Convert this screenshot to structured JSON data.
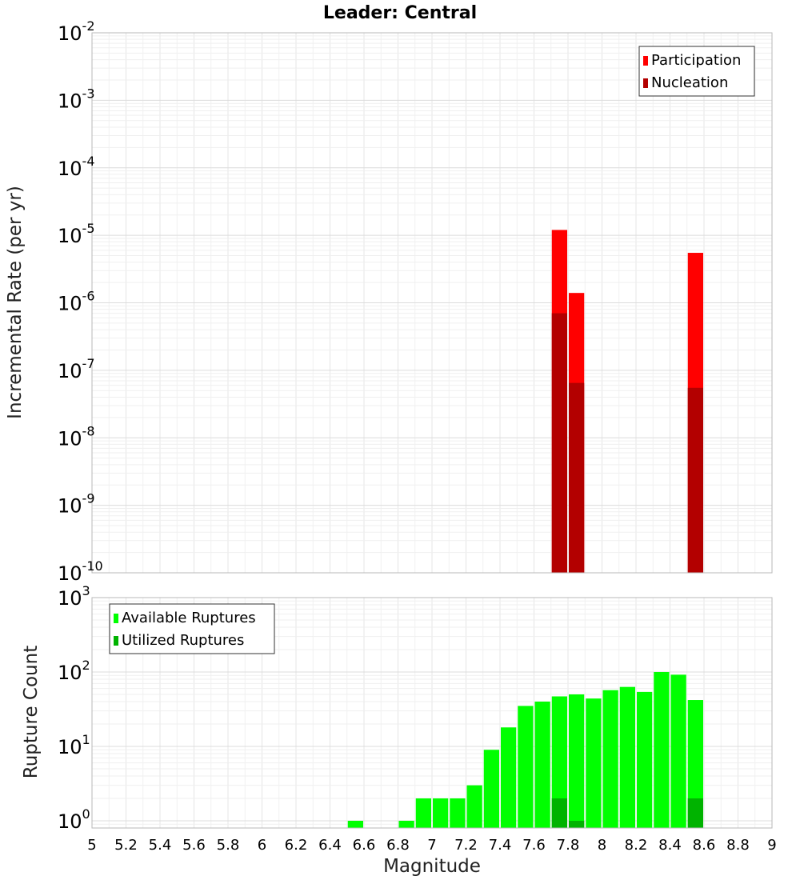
{
  "title": "Leader: Central",
  "xlabel": "Magnitude",
  "chart_data": [
    {
      "type": "bar",
      "ylabel": "Incremental Rate (per yr)",
      "yscale": "log",
      "ylim": [
        1e-10,
        0.01
      ],
      "xlim": [
        5,
        9
      ],
      "grid": true,
      "legend_placement": "top-right",
      "series": [
        {
          "name": "Participation",
          "color": "#ff0000",
          "x": [
            7.75,
            7.85,
            8.55
          ],
          "values": [
            1.2e-05,
            1.4e-06,
            5.5e-06
          ]
        },
        {
          "name": "Nucleation",
          "color": "#b30000",
          "x": [
            7.75,
            7.85,
            8.55
          ],
          "values": [
            7e-07,
            6.5e-08,
            5.5e-08
          ]
        }
      ]
    },
    {
      "type": "bar",
      "ylabel": "Rupture Count",
      "yscale": "log",
      "ylim": [
        0.8,
        1000
      ],
      "xlim": [
        5,
        9
      ],
      "grid": true,
      "legend_placement": "top-left",
      "series": [
        {
          "name": "Available Ruptures",
          "color": "#00ff00",
          "x": [
            6.55,
            6.85,
            6.95,
            7.05,
            7.15,
            7.25,
            7.35,
            7.45,
            7.55,
            7.65,
            7.75,
            7.85,
            7.95,
            8.05,
            8.15,
            8.25,
            8.35,
            8.45,
            8.55
          ],
          "values": [
            1,
            1,
            2,
            2,
            2,
            3,
            9,
            18,
            35,
            40,
            47,
            50,
            44,
            57,
            63,
            54,
            100,
            92,
            42
          ]
        },
        {
          "name": "Utilized Ruptures",
          "color": "#00b300",
          "x": [
            7.75,
            7.85,
            8.55
          ],
          "values": [
            2,
            1,
            2
          ]
        }
      ]
    }
  ],
  "x_ticks": [
    "5",
    "5.2",
    "5.4",
    "5.6",
    "5.8",
    "6",
    "6.2",
    "6.4",
    "6.6",
    "6.8",
    "7",
    "7.2",
    "7.4",
    "7.6",
    "7.8",
    "8",
    "8.2",
    "8.4",
    "8.6",
    "8.8",
    "9"
  ],
  "top_y_ticks": [
    {
      "base": "10",
      "exp": "-2"
    },
    {
      "base": "10",
      "exp": "-3"
    },
    {
      "base": "10",
      "exp": "-4"
    },
    {
      "base": "10",
      "exp": "-5"
    },
    {
      "base": "10",
      "exp": "-6"
    },
    {
      "base": "10",
      "exp": "-7"
    },
    {
      "base": "10",
      "exp": "-8"
    },
    {
      "base": "10",
      "exp": "-9"
    },
    {
      "base": "10",
      "exp": "-10"
    }
  ],
  "bottom_y_ticks": [
    {
      "base": "10",
      "exp": "3"
    },
    {
      "base": "10",
      "exp": "2"
    },
    {
      "base": "10",
      "exp": "1"
    },
    {
      "base": "10",
      "exp": "0"
    }
  ]
}
